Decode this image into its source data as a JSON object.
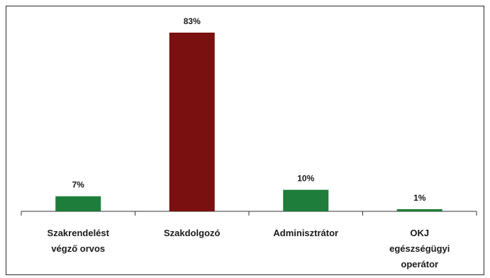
{
  "chart_data": {
    "type": "bar",
    "categories": [
      [
        "Szakrendelést",
        "végző orvos"
      ],
      [
        "Szakdolgozó"
      ],
      [
        "Adminisztrátor"
      ],
      [
        "OKJ",
        "egészségügyi",
        "operátor"
      ]
    ],
    "values": [
      7,
      83,
      10,
      1
    ],
    "data_labels": [
      "7%",
      "83%",
      "10%",
      "1%"
    ],
    "colors": [
      "#1e7d3a",
      "#7a1010",
      "#1e7d3a",
      "#1e7d3a"
    ],
    "ylim": [
      0,
      83
    ],
    "grid": false,
    "legend": "none"
  }
}
